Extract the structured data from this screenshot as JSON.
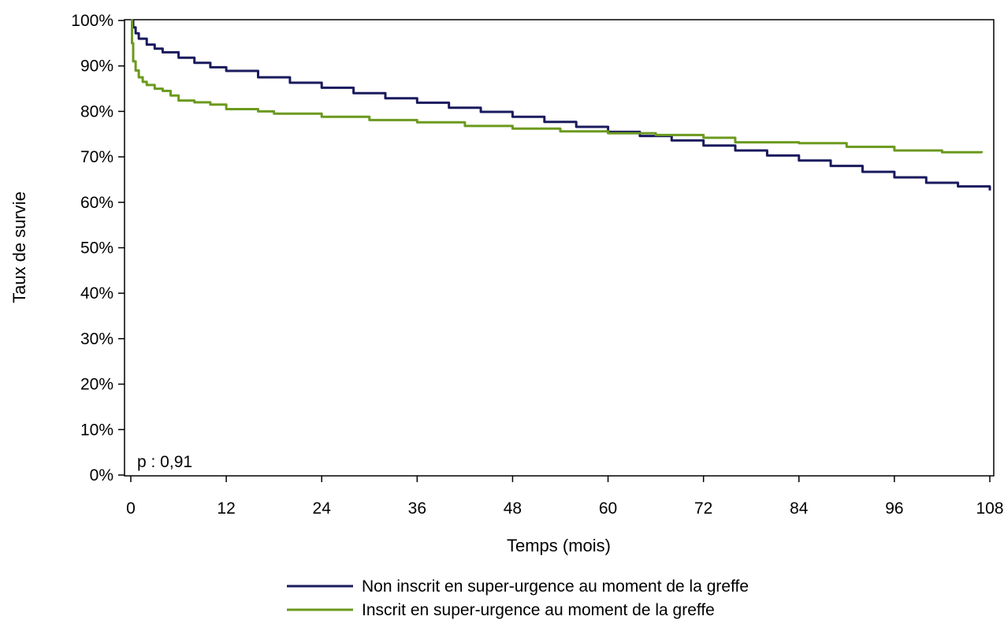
{
  "chart_data": {
    "type": "line",
    "xlabel": "Temps (mois)",
    "ylabel": "Taux de survie",
    "xlim": [
      0,
      108
    ],
    "ylim": [
      0,
      100
    ],
    "x_ticks": [
      0,
      12,
      24,
      36,
      48,
      60,
      72,
      84,
      96,
      108
    ],
    "y_ticks": [
      0,
      10,
      20,
      30,
      40,
      50,
      60,
      70,
      80,
      90,
      100
    ],
    "y_tick_labels": [
      "0%",
      "10%",
      "20%",
      "30%",
      "40%",
      "50%",
      "60%",
      "70%",
      "80%",
      "90%",
      "100%"
    ],
    "annotation": "p : 0,91",
    "legend_position": "bottom",
    "grid": false,
    "series": [
      {
        "name": "Non inscrit en super-urgence au moment de la greffe",
        "color": "#1a1a5e",
        "x": [
          0,
          0.3,
          0.6,
          1,
          2,
          3,
          4,
          6,
          8,
          10,
          12,
          16,
          20,
          24,
          28,
          32,
          36,
          40,
          44,
          48,
          52,
          56,
          60,
          64,
          68,
          72,
          76,
          80,
          84,
          88,
          92,
          96,
          100,
          104,
          108
        ],
        "y": [
          100,
          98.5,
          97.2,
          96,
          94.7,
          93.8,
          93,
          91.8,
          90.7,
          89.7,
          88.9,
          87.5,
          86.3,
          85.2,
          84,
          82.9,
          81.9,
          80.8,
          79.9,
          78.8,
          77.7,
          76.6,
          75.5,
          74.6,
          73.6,
          72.5,
          71.4,
          70.3,
          69.2,
          68,
          66.7,
          65.5,
          64.3,
          63.5,
          62.6
        ]
      },
      {
        "name": "Inscrit en super-urgence au moment de la greffe",
        "color": "#6b9a1e",
        "x": [
          0,
          0.15,
          0.3,
          0.6,
          1,
          1.5,
          2,
          3,
          4,
          5,
          6,
          8,
          10,
          12,
          16,
          18,
          24,
          30,
          36,
          42,
          48,
          54,
          60,
          66,
          72,
          76,
          84,
          90,
          96,
          102,
          107
        ],
        "y": [
          100,
          95,
          91,
          89,
          87.5,
          86.5,
          85.8,
          85,
          84.5,
          83.5,
          82.4,
          82,
          81.5,
          80.5,
          80,
          79.5,
          78.8,
          78.1,
          77.6,
          76.8,
          76.2,
          75.6,
          75.2,
          74.8,
          74.2,
          73.2,
          73,
          72.2,
          71.4,
          71,
          70.9
        ]
      }
    ]
  }
}
